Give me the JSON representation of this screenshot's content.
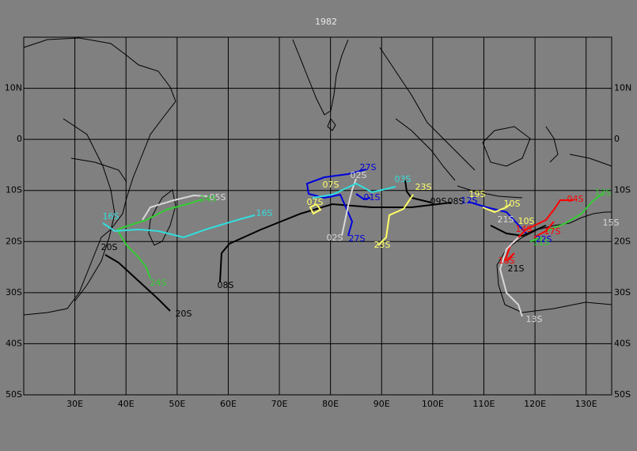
{
  "title": "1982",
  "lonlim": [
    20,
    135
  ],
  "latlim": [
    -50,
    20
  ],
  "lonticks": [
    {
      "value": 30,
      "label": "30E"
    },
    {
      "value": 40,
      "label": "40E"
    },
    {
      "value": 50,
      "label": "50E"
    },
    {
      "value": 60,
      "label": "60E"
    },
    {
      "value": 70,
      "label": "70E"
    },
    {
      "value": 80,
      "label": "80E"
    },
    {
      "value": 90,
      "label": "90E"
    },
    {
      "value": 100,
      "label": "100E"
    },
    {
      "value": 110,
      "label": "110E"
    },
    {
      "value": 120,
      "label": "120E"
    },
    {
      "value": 130,
      "label": "130E"
    }
  ],
  "latticks": [
    {
      "value": 10,
      "label": "10N"
    },
    {
      "value": 0,
      "label": "0"
    },
    {
      "value": -10,
      "label": "10S"
    },
    {
      "value": -20,
      "label": "20S"
    },
    {
      "value": -30,
      "label": "30S"
    },
    {
      "value": -40,
      "label": "40S"
    },
    {
      "value": -50,
      "label": "50S"
    }
  ],
  "storms": [
    {
      "name": "05S",
      "color": "#d8d8d8"
    },
    {
      "name": "24S",
      "color": "#33cc33"
    },
    {
      "name": "24S",
      "color": "#33cc33"
    },
    {
      "name": "16S",
      "color": "#33dddd"
    },
    {
      "name": "16S",
      "color": "#33dddd"
    },
    {
      "name": "20S",
      "color": "#000000"
    },
    {
      "name": "20S",
      "color": "#000000"
    },
    {
      "name": "08S",
      "color": "#000000"
    },
    {
      "name": "09S",
      "color": "#000000"
    },
    {
      "name": "08S",
      "color": "#000000"
    },
    {
      "name": "27S",
      "color": "#0000dd"
    },
    {
      "name": "27S",
      "color": "#0000dd"
    },
    {
      "name": "02S",
      "color": "#d8d8d8"
    },
    {
      "name": "02S",
      "color": "#d8d8d8"
    },
    {
      "name": "07S",
      "color": "#ffff66"
    },
    {
      "name": "07S",
      "color": "#ffff66"
    },
    {
      "name": "01S",
      "color": "#0000dd"
    },
    {
      "name": "03S",
      "color": "#33dddd"
    },
    {
      "name": "23S",
      "color": "#ffff66"
    },
    {
      "name": "23S",
      "color": "#ffff66"
    },
    {
      "name": "19S",
      "color": "#ffff66"
    },
    {
      "name": "12S",
      "color": "#0000dd"
    },
    {
      "name": "10S",
      "color": "#ffff66"
    },
    {
      "name": "10S",
      "color": "#ffff66"
    },
    {
      "name": "21S",
      "color": "#d8d8d8"
    },
    {
      "name": "21S",
      "color": "#000000"
    },
    {
      "name": "04S",
      "color": "#ff0000"
    },
    {
      "name": "13S",
      "color": "#33cc33"
    },
    {
      "name": "13S",
      "color": "#d8d8d8"
    },
    {
      "name": "15S",
      "color": "#d8d8d8"
    },
    {
      "name": "17S",
      "color": "#ff0000"
    },
    {
      "name": "14S",
      "color": "#ff0000"
    },
    {
      "name": "22S",
      "color": "#0000dd"
    },
    {
      "name": "11S",
      "color": "#33cc33"
    },
    {
      "name": "18S",
      "color": "#ff0000"
    }
  ]
}
